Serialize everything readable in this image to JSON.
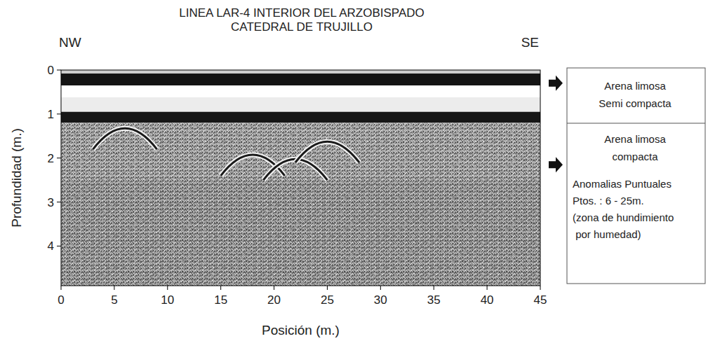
{
  "chart_data": {
    "type": "radargram",
    "title": [
      "LINEA LAR-4 INTERIOR DEL ARZOBISPADO",
      "CATEDRAL DE TRUJILLO"
    ],
    "direction_left": "NW",
    "direction_right": "SE",
    "x_label": "Posición (m.)",
    "y_label": "Profundidad (m.)",
    "xlim": [
      0,
      45
    ],
    "ylim": [
      0,
      4.9
    ],
    "xticks": [
      0,
      5,
      10,
      15,
      20,
      25,
      30,
      35,
      40,
      45
    ],
    "yticks": [
      0,
      1,
      2,
      3,
      4
    ],
    "layers": [
      {
        "top": 0,
        "bottom": 0.08,
        "color": "#cfcfcf",
        "texture": false
      },
      {
        "top": 0.08,
        "bottom": 0.35,
        "color": "#141414",
        "texture": false
      },
      {
        "top": 0.35,
        "bottom": 0.62,
        "color": "#ffffff",
        "texture": false
      },
      {
        "top": 0.62,
        "bottom": 0.95,
        "color": "#ececec",
        "texture": false
      },
      {
        "top": 0.95,
        "bottom": 1.2,
        "color": "#161616",
        "texture": false
      },
      {
        "top": 1.2,
        "bottom": 2.5,
        "color": "#a8a8a8",
        "texture": true
      },
      {
        "top": 2.5,
        "bottom": 4.9,
        "color": "#9a9a9a",
        "texture": true
      }
    ],
    "anomalies": [
      {
        "x": 6,
        "depth": 1.3
      },
      {
        "x": 18,
        "depth": 1.9
      },
      {
        "x": 22,
        "depth": 2.0
      },
      {
        "x": 25,
        "depth": 1.6
      }
    ],
    "units": [
      {
        "depth": 0.3,
        "lines": [
          "Arena limosa",
          "Semi compacta"
        ]
      },
      {
        "depth": 2.15,
        "lines": [
          "Arena limosa",
          "compacta",
          "Anomalias Puntuales",
          "Ptos. : 6 - 25m.",
          "(zona de hundimiento",
          " por humedad)"
        ]
      }
    ]
  }
}
